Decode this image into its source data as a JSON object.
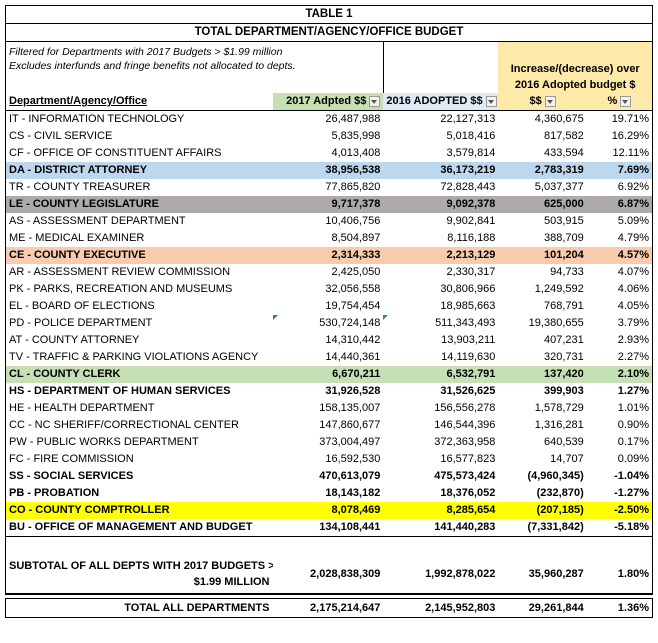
{
  "title": "TABLE 1",
  "subtitle": "TOTAL DEPARTMENT/AGENCY/OFFICE BUDGET",
  "filter_note_1": "Filtered for Departments with 2017 Budgets > $1.99 million",
  "filter_note_2": "Excludes interfunds and fringe benefits not allocated to depts.",
  "increase_header_1": "Increase/(decrease) over",
  "increase_header_2": "2016 Adopted budget $",
  "headers": {
    "dept": "Department/Agency/Office",
    "budget_2017": "2017 Adpted $$",
    "budget_2016": "2016 ADOPTED $$",
    "diff": "$$",
    "pct": "%"
  },
  "rows": [
    {
      "name": "IT - INFORMATION TECHNOLOGY",
      "b2017": "26,487,988",
      "b2016": "22,127,313",
      "diff": "4,360,675",
      "pct": "19.71%",
      "style": ""
    },
    {
      "name": "CS - CIVIL SERVICE",
      "b2017": "5,835,998",
      "b2016": "5,018,416",
      "diff": "817,582",
      "pct": "16.29%",
      "style": ""
    },
    {
      "name": "CF - OFFICE OF CONSTITUENT AFFAIRS",
      "b2017": "4,013,408",
      "b2016": "3,579,814",
      "diff": "433,594",
      "pct": "12.11%",
      "style": ""
    },
    {
      "name": "DA - DISTRICT ATTORNEY",
      "b2017": "38,956,538",
      "b2016": "36,173,219",
      "diff": "2,783,319",
      "pct": "7.69%",
      "style": "blue"
    },
    {
      "name": "TR - COUNTY TREASURER",
      "b2017": "77,865,820",
      "b2016": "72,828,443",
      "diff": "5,037,377",
      "pct": "6.92%",
      "style": ""
    },
    {
      "name": "LE - COUNTY LEGISLATURE",
      "b2017": "9,717,378",
      "b2016": "9,092,378",
      "diff": "625,000",
      "pct": "6.87%",
      "style": "gray"
    },
    {
      "name": "AS - ASSESSMENT DEPARTMENT",
      "b2017": "10,406,756",
      "b2016": "9,902,841",
      "diff": "503,915",
      "pct": "5.09%",
      "style": ""
    },
    {
      "name": "ME - MEDICAL EXAMINER",
      "b2017": "8,504,897",
      "b2016": "8,116,188",
      "diff": "388,709",
      "pct": "4.79%",
      "style": ""
    },
    {
      "name": "CE - COUNTY EXECUTIVE",
      "b2017": "2,314,333",
      "b2016": "2,213,129",
      "diff": "101,204",
      "pct": "4.57%",
      "style": "peach"
    },
    {
      "name": "AR - ASSESSMENT REVIEW COMMISSION",
      "b2017": "2,425,050",
      "b2016": "2,330,317",
      "diff": "94,733",
      "pct": "4.07%",
      "style": ""
    },
    {
      "name": "PK - PARKS, RECREATION AND MUSEUMS",
      "b2017": "32,056,558",
      "b2016": "30,806,966",
      "diff": "1,249,592",
      "pct": "4.06%",
      "style": ""
    },
    {
      "name": "EL - BOARD OF ELECTIONS",
      "b2017": "19,754,454",
      "b2016": "18,985,663",
      "diff": "768,791",
      "pct": "4.05%",
      "style": ""
    },
    {
      "name": "PD - POLICE DEPARTMENT",
      "b2017": "530,724,148",
      "b2016": "511,343,493",
      "diff": "19,380,655",
      "pct": "3.79%",
      "style": "",
      "marker": true
    },
    {
      "name": "AT - COUNTY ATTORNEY",
      "b2017": "14,310,442",
      "b2016": "13,903,211",
      "diff": "407,231",
      "pct": "2.93%",
      "style": ""
    },
    {
      "name": "TV - TRAFFIC & PARKING VIOLATIONS AGENCY",
      "b2017": "14,440,361",
      "b2016": "14,119,630",
      "diff": "320,731",
      "pct": "2.27%",
      "style": ""
    },
    {
      "name": "CL - COUNTY CLERK",
      "b2017": "6,670,211",
      "b2016": "6,532,791",
      "diff": "137,420",
      "pct": "2.10%",
      "style": "green"
    },
    {
      "name": "HS - DEPARTMENT OF HUMAN SERVICES",
      "b2017": "31,926,528",
      "b2016": "31,526,625",
      "diff": "399,903",
      "pct": "1.27%",
      "style": "bold"
    },
    {
      "name": "HE - HEALTH DEPARTMENT",
      "b2017": "158,135,007",
      "b2016": "156,556,278",
      "diff": "1,578,729",
      "pct": "1.01%",
      "style": ""
    },
    {
      "name": "CC - NC SHERIFF/CORRECTIONAL CENTER",
      "b2017": "147,860,677",
      "b2016": "146,544,396",
      "diff": "1,316,281",
      "pct": "0.90%",
      "style": ""
    },
    {
      "name": "PW - PUBLIC WORKS DEPARTMENT",
      "b2017": "373,004,497",
      "b2016": "372,363,958",
      "diff": "640,539",
      "pct": "0.17%",
      "style": ""
    },
    {
      "name": "FC - FIRE COMMISSION",
      "b2017": "16,592,530",
      "b2016": "16,577,823",
      "diff": "14,707",
      "pct": "0.09%",
      "style": ""
    },
    {
      "name": "SS - SOCIAL SERVICES",
      "b2017": "470,613,079",
      "b2016": "475,573,424",
      "diff": "(4,960,345)",
      "pct": "-1.04%",
      "style": "bold"
    },
    {
      "name": "PB - PROBATION",
      "b2017": "18,143,182",
      "b2016": "18,376,052",
      "diff": "(232,870)",
      "pct": "-1.27%",
      "style": "bold"
    },
    {
      "name": "CO - COUNTY COMPTROLLER",
      "b2017": "8,078,469",
      "b2016": "8,285,654",
      "diff": "(207,185)",
      "pct": "-2.50%",
      "style": "yellow"
    },
    {
      "name": "BU - OFFICE OF MANAGEMENT AND BUDGET",
      "b2017": "134,108,441",
      "b2016": "141,440,283",
      "diff": "(7,331,842)",
      "pct": "-5.18%",
      "style": "bold"
    }
  ],
  "subtotal": {
    "label_1": "SUBTOTAL OF ALL DEPTS WITH 2017 BUDGETS >",
    "label_2": "$1.99 MILLION",
    "b2017": "2,028,838,309",
    "b2016": "1,992,878,022",
    "diff": "35,960,287",
    "pct": "1.80%"
  },
  "total": {
    "label": "TOTAL ALL DEPARTMENTS",
    "b2017": "2,175,214,647",
    "b2016": "2,145,952,803",
    "diff": "29,261,844",
    "pct": "1.36%"
  },
  "colors": {
    "blue": "#bdd7ee",
    "gray": "#aeaaaa",
    "peach": "#f8cbad",
    "green": "#c5e0b4",
    "yellow": "#ffff00",
    "header_green": "#c6e0b4",
    "header_blue": "#ddebf7",
    "header_gold": "#fde9a8"
  }
}
